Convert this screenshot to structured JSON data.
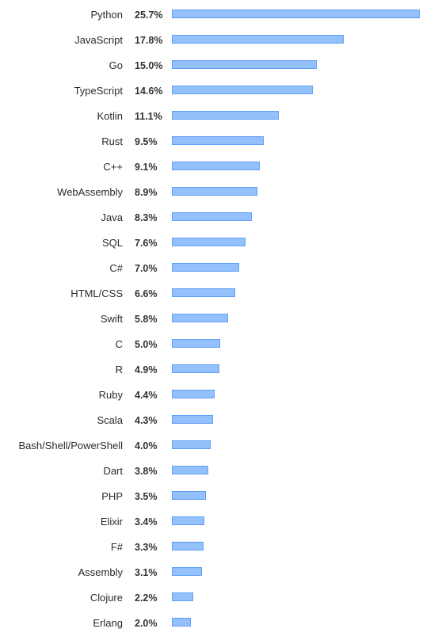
{
  "chart_data": {
    "type": "bar",
    "orientation": "horizontal",
    "categories": [
      "Python",
      "JavaScript",
      "Go",
      "TypeScript",
      "Kotlin",
      "Rust",
      "C++",
      "WebAssembly",
      "Java",
      "SQL",
      "C#",
      "HTML/CSS",
      "Swift",
      "C",
      "R",
      "Ruby",
      "Scala",
      "Bash/Shell/PowerShell",
      "Dart",
      "PHP",
      "Elixir",
      "F#",
      "Assembly",
      "Clojure",
      "Erlang"
    ],
    "values": [
      25.7,
      17.8,
      15.0,
      14.6,
      11.1,
      9.5,
      9.1,
      8.9,
      8.3,
      7.6,
      7.0,
      6.6,
      5.8,
      5.0,
      4.9,
      4.4,
      4.3,
      4.0,
      3.8,
      3.5,
      3.4,
      3.3,
      3.1,
      2.2,
      2.0
    ],
    "value_labels": [
      "25.7%",
      "17.8%",
      "15.0%",
      "14.6%",
      "11.1%",
      "9.5%",
      "9.1%",
      "8.9%",
      "8.3%",
      "7.6%",
      "7.0%",
      "6.6%",
      "5.8%",
      "5.0%",
      "4.9%",
      "4.4%",
      "4.3%",
      "4.0%",
      "3.8%",
      "3.5%",
      "3.4%",
      "3.3%",
      "3.1%",
      "2.2%",
      "2.0%"
    ],
    "unit": "%",
    "xlim": [
      0,
      25.7
    ],
    "grid": false,
    "colors": {
      "bar_fill": "#94c1fb",
      "bar_stroke": "#5e9ff5"
    }
  }
}
